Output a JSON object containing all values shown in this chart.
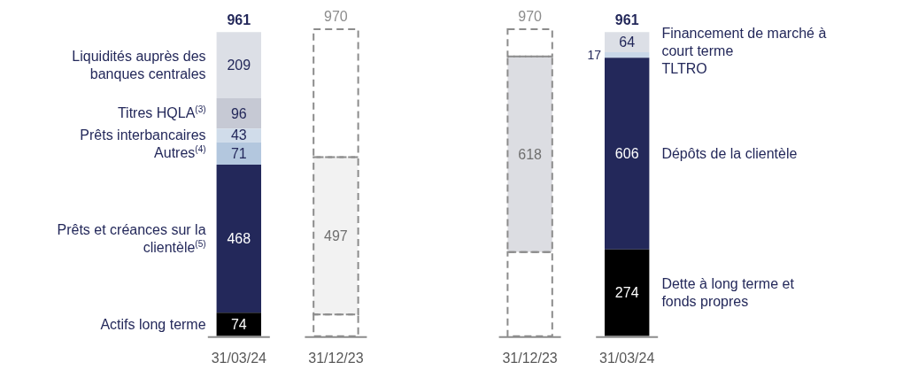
{
  "chart_data": {
    "type": "bar",
    "stacked": true,
    "categories": [
      "31/03/24",
      "31/12/23",
      null,
      "31/12/23",
      "31/03/24"
    ],
    "series": [
      {
        "name": "Actifs long terme",
        "color": "#000000",
        "values": [
          74,
          null,
          null,
          null,
          null
        ],
        "value_labels": [
          "74",
          null,
          null,
          null,
          null
        ]
      },
      {
        "name": "Prêts et créances sur la clientèle$^{(5)}$",
        "color": "#23285a",
        "values": [
          468,
          null,
          null,
          null,
          null
        ],
        "value_labels": [
          "468",
          null,
          null,
          null,
          null
        ]
      },
      {
        "name": "Autres$^{(4)}$",
        "color": "#b3c7de",
        "values": [
          71,
          null,
          null,
          null,
          null
        ],
        "value_labels": [
          "71",
          null,
          null,
          null,
          null
        ]
      },
      {
        "name": "Prêts interbancaires",
        "color": "#d0dcea",
        "values": [
          43,
          null,
          null,
          null,
          null
        ],
        "value_labels": [
          "43",
          null,
          null,
          null,
          null
        ]
      },
      {
        "name": "Titres HQLA$^{(3)}$",
        "color": "#c6c9d4",
        "values": [
          96,
          null,
          null,
          null,
          null
        ],
        "value_labels": [
          "96",
          null,
          null,
          null,
          null
        ]
      },
      {
        "name": "Liquidités auprès des banques centrales",
        "color": "#dcdfe6",
        "values": [
          209,
          null,
          null,
          null,
          null
        ],
        "value_labels": [
          "209",
          null,
          null,
          null,
          null
        ]
      },
      {
        "color": "#ffffff",
        "line_style": "dashed",
        "values": [
          null,
          69,
          null,
          266,
          null
        ],
        "value_labels": [
          null,
          null,
          null,
          null,
          null
        ]
      },
      {
        "color": "#f2f2f2",
        "line_style": "dashed",
        "values": [
          null,
          497,
          null,
          null,
          null
        ],
        "value_labels": [
          null,
          "497",
          null,
          null,
          null
        ]
      },
      {
        "color": "#dcdde2",
        "line_style": "dashed",
        "values": [
          null,
          null,
          null,
          618,
          null
        ],
        "value_labels": [
          null,
          null,
          null,
          "618",
          null
        ]
      },
      {
        "color": "#ffffff",
        "line_style": "dashed",
        "values": [
          null,
          404,
          null,
          86,
          null
        ],
        "value_labels": [
          null,
          null,
          null,
          null,
          null
        ]
      },
      {
        "name": "Dette à long terme et fonds propres",
        "color": "#000000",
        "values": [
          null,
          null,
          null,
          null,
          274
        ],
        "value_labels": [
          null,
          null,
          null,
          null,
          "274"
        ]
      },
      {
        "name": "Dépôts de la clientèle",
        "color": "#23285a",
        "values": [
          null,
          null,
          null,
          null,
          606
        ],
        "value_labels": [
          null,
          null,
          null,
          null,
          "606"
        ]
      },
      {
        "name": "TLTRO",
        "color": "#c9d7e8",
        "values": [
          null,
          null,
          null,
          null,
          17
        ],
        "value_labels": [
          null,
          null,
          null,
          null,
          "17"
        ]
      },
      {
        "name": "Financement de marché à court terme",
        "color": "#dcdfe6",
        "values": [
          null,
          null,
          null,
          null,
          64
        ],
        "value_labels": [
          null,
          null,
          null,
          null,
          "64"
        ]
      }
    ],
    "totals": [
      "961",
      "970",
      null,
      "970",
      "961"
    ]
  }
}
